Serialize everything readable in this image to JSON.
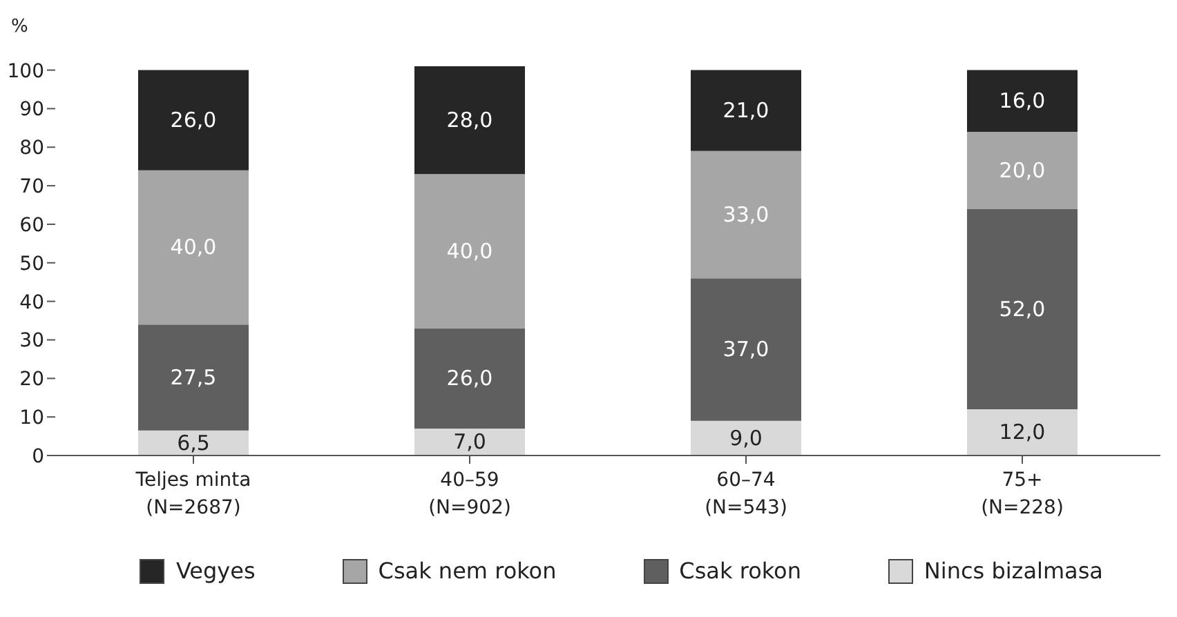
{
  "chart_data": {
    "type": "bar",
    "stacked": true,
    "ylabel": "%",
    "categories": [
      "Teljes minta\n(N=2687)",
      "40–59\n(N=902)",
      "60–74\n(N=543)",
      "75+\n(N=228)"
    ],
    "series": [
      {
        "name": "Nincs bizalmasa",
        "color": "#d9d9d9",
        "values": [
          6.5,
          7.0,
          9.0,
          12.0
        ],
        "value_labels": [
          "6,5",
          "7,0",
          "9,0",
          "12,0"
        ]
      },
      {
        "name": "Csak rokon",
        "color": "#5f5f5f",
        "values": [
          27.5,
          26.0,
          37.0,
          52.0
        ],
        "value_labels": [
          "27,5",
          "26,0",
          "37,0",
          "52,0"
        ]
      },
      {
        "name": "Csak nem rokon",
        "color": "#a6a6a6",
        "values": [
          40.0,
          40.0,
          33.0,
          20.0
        ],
        "value_labels": [
          "40,0",
          "40,0",
          "33,0",
          "20,0"
        ]
      },
      {
        "name": "Vegyes",
        "color": "#262626",
        "values": [
          26.0,
          28.0,
          21.0,
          16.0
        ],
        "value_labels": [
          "26,0",
          "28,0",
          "21,0",
          "16,0"
        ]
      }
    ],
    "ylim": [
      0,
      101
    ],
    "yticks": [
      0,
      10,
      20,
      30,
      40,
      50,
      60,
      70,
      80,
      90,
      100
    ],
    "grid": false,
    "legend": "bottom"
  }
}
